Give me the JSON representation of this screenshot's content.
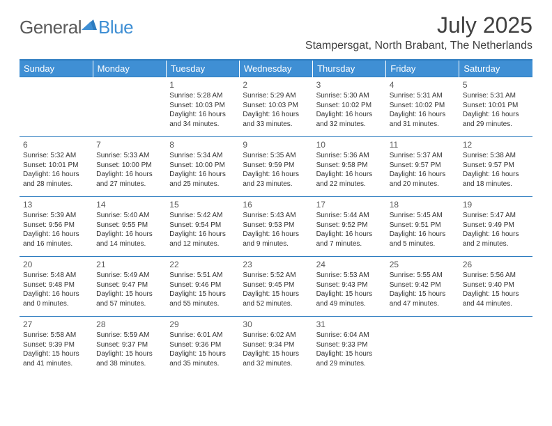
{
  "logo": {
    "text1": "General",
    "text2": "Blue"
  },
  "title": "July 2025",
  "location": "Stampersgat, North Brabant, The Netherlands",
  "colors": {
    "header_bg": "#3f8fd4",
    "header_text": "#ffffff",
    "border": "#2d7cc0",
    "text": "#333333",
    "title_text": "#404040",
    "logo_gray": "#5a5a5a",
    "logo_blue": "#3f8fd4",
    "page_bg": "#ffffff"
  },
  "weekdays": [
    "Sunday",
    "Monday",
    "Tuesday",
    "Wednesday",
    "Thursday",
    "Friday",
    "Saturday"
  ],
  "weeks": [
    [
      null,
      null,
      {
        "n": "1",
        "sr": "5:28 AM",
        "ss": "10:03 PM",
        "dl": "16 hours and 34 minutes."
      },
      {
        "n": "2",
        "sr": "5:29 AM",
        "ss": "10:03 PM",
        "dl": "16 hours and 33 minutes."
      },
      {
        "n": "3",
        "sr": "5:30 AM",
        "ss": "10:02 PM",
        "dl": "16 hours and 32 minutes."
      },
      {
        "n": "4",
        "sr": "5:31 AM",
        "ss": "10:02 PM",
        "dl": "16 hours and 31 minutes."
      },
      {
        "n": "5",
        "sr": "5:31 AM",
        "ss": "10:01 PM",
        "dl": "16 hours and 29 minutes."
      }
    ],
    [
      {
        "n": "6",
        "sr": "5:32 AM",
        "ss": "10:01 PM",
        "dl": "16 hours and 28 minutes."
      },
      {
        "n": "7",
        "sr": "5:33 AM",
        "ss": "10:00 PM",
        "dl": "16 hours and 27 minutes."
      },
      {
        "n": "8",
        "sr": "5:34 AM",
        "ss": "10:00 PM",
        "dl": "16 hours and 25 minutes."
      },
      {
        "n": "9",
        "sr": "5:35 AM",
        "ss": "9:59 PM",
        "dl": "16 hours and 23 minutes."
      },
      {
        "n": "10",
        "sr": "5:36 AM",
        "ss": "9:58 PM",
        "dl": "16 hours and 22 minutes."
      },
      {
        "n": "11",
        "sr": "5:37 AM",
        "ss": "9:57 PM",
        "dl": "16 hours and 20 minutes."
      },
      {
        "n": "12",
        "sr": "5:38 AM",
        "ss": "9:57 PM",
        "dl": "16 hours and 18 minutes."
      }
    ],
    [
      {
        "n": "13",
        "sr": "5:39 AM",
        "ss": "9:56 PM",
        "dl": "16 hours and 16 minutes."
      },
      {
        "n": "14",
        "sr": "5:40 AM",
        "ss": "9:55 PM",
        "dl": "16 hours and 14 minutes."
      },
      {
        "n": "15",
        "sr": "5:42 AM",
        "ss": "9:54 PM",
        "dl": "16 hours and 12 minutes."
      },
      {
        "n": "16",
        "sr": "5:43 AM",
        "ss": "9:53 PM",
        "dl": "16 hours and 9 minutes."
      },
      {
        "n": "17",
        "sr": "5:44 AM",
        "ss": "9:52 PM",
        "dl": "16 hours and 7 minutes."
      },
      {
        "n": "18",
        "sr": "5:45 AM",
        "ss": "9:51 PM",
        "dl": "16 hours and 5 minutes."
      },
      {
        "n": "19",
        "sr": "5:47 AM",
        "ss": "9:49 PM",
        "dl": "16 hours and 2 minutes."
      }
    ],
    [
      {
        "n": "20",
        "sr": "5:48 AM",
        "ss": "9:48 PM",
        "dl": "16 hours and 0 minutes."
      },
      {
        "n": "21",
        "sr": "5:49 AM",
        "ss": "9:47 PM",
        "dl": "15 hours and 57 minutes."
      },
      {
        "n": "22",
        "sr": "5:51 AM",
        "ss": "9:46 PM",
        "dl": "15 hours and 55 minutes."
      },
      {
        "n": "23",
        "sr": "5:52 AM",
        "ss": "9:45 PM",
        "dl": "15 hours and 52 minutes."
      },
      {
        "n": "24",
        "sr": "5:53 AM",
        "ss": "9:43 PM",
        "dl": "15 hours and 49 minutes."
      },
      {
        "n": "25",
        "sr": "5:55 AM",
        "ss": "9:42 PM",
        "dl": "15 hours and 47 minutes."
      },
      {
        "n": "26",
        "sr": "5:56 AM",
        "ss": "9:40 PM",
        "dl": "15 hours and 44 minutes."
      }
    ],
    [
      {
        "n": "27",
        "sr": "5:58 AM",
        "ss": "9:39 PM",
        "dl": "15 hours and 41 minutes."
      },
      {
        "n": "28",
        "sr": "5:59 AM",
        "ss": "9:37 PM",
        "dl": "15 hours and 38 minutes."
      },
      {
        "n": "29",
        "sr": "6:01 AM",
        "ss": "9:36 PM",
        "dl": "15 hours and 35 minutes."
      },
      {
        "n": "30",
        "sr": "6:02 AM",
        "ss": "9:34 PM",
        "dl": "15 hours and 32 minutes."
      },
      {
        "n": "31",
        "sr": "6:04 AM",
        "ss": "9:33 PM",
        "dl": "15 hours and 29 minutes."
      },
      null,
      null
    ]
  ]
}
